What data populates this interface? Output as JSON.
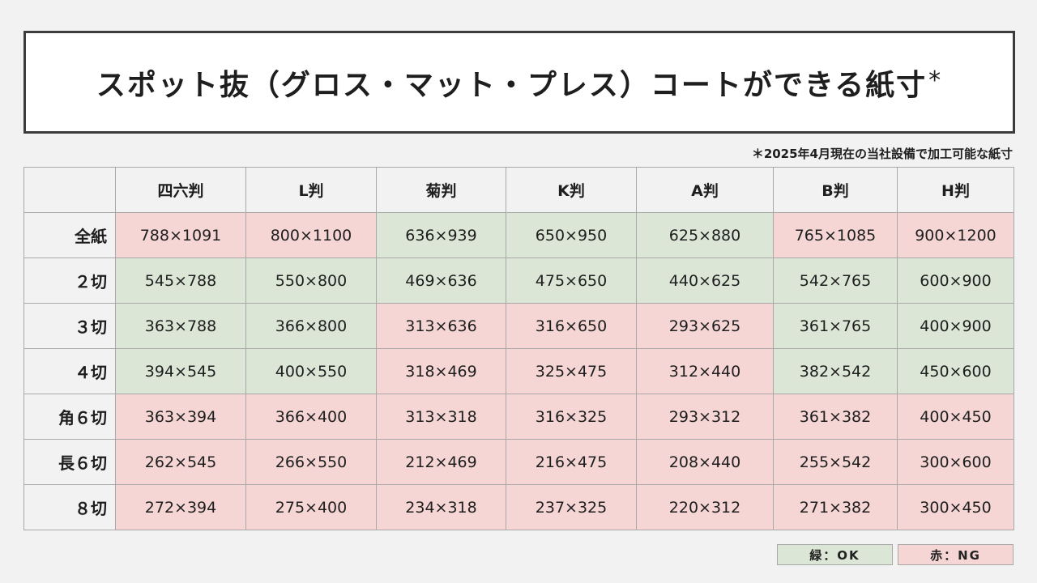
{
  "title": {
    "text": "スポット抜（グロス・マット・プレス）コートができる紙寸",
    "mark": "*"
  },
  "note": "＊2025年4月現在の当社設備で加工可能な紙寸",
  "table": {
    "columns": [
      "四六判",
      "L判",
      "菊判",
      "K判",
      "A判",
      "B判",
      "H判"
    ],
    "rows": [
      {
        "label": "全紙",
        "cells": [
          {
            "value": "788×1091",
            "status": "ng"
          },
          {
            "value": "800×1100",
            "status": "ng"
          },
          {
            "value": "636×939",
            "status": "ok"
          },
          {
            "value": "650×950",
            "status": "ok"
          },
          {
            "value": "625×880",
            "status": "ok"
          },
          {
            "value": "765×1085",
            "status": "ng"
          },
          {
            "value": "900×1200",
            "status": "ng"
          }
        ]
      },
      {
        "label": "２切",
        "cells": [
          {
            "value": "545×788",
            "status": "ok"
          },
          {
            "value": "550×800",
            "status": "ok"
          },
          {
            "value": "469×636",
            "status": "ok"
          },
          {
            "value": "475×650",
            "status": "ok"
          },
          {
            "value": "440×625",
            "status": "ok"
          },
          {
            "value": "542×765",
            "status": "ok"
          },
          {
            "value": "600×900",
            "status": "ok"
          }
        ]
      },
      {
        "label": "３切",
        "cells": [
          {
            "value": "363×788",
            "status": "ok"
          },
          {
            "value": "366×800",
            "status": "ok"
          },
          {
            "value": "313×636",
            "status": "ng"
          },
          {
            "value": "316×650",
            "status": "ng"
          },
          {
            "value": "293×625",
            "status": "ng"
          },
          {
            "value": "361×765",
            "status": "ok"
          },
          {
            "value": "400×900",
            "status": "ok"
          }
        ]
      },
      {
        "label": "４切",
        "cells": [
          {
            "value": "394×545",
            "status": "ok"
          },
          {
            "value": "400×550",
            "status": "ok"
          },
          {
            "value": "318×469",
            "status": "ng"
          },
          {
            "value": "325×475",
            "status": "ng"
          },
          {
            "value": "312×440",
            "status": "ng"
          },
          {
            "value": "382×542",
            "status": "ok"
          },
          {
            "value": "450×600",
            "status": "ok"
          }
        ]
      },
      {
        "label": "角６切",
        "cells": [
          {
            "value": "363×394",
            "status": "ng"
          },
          {
            "value": "366×400",
            "status": "ng"
          },
          {
            "value": "313×318",
            "status": "ng"
          },
          {
            "value": "316×325",
            "status": "ng"
          },
          {
            "value": "293×312",
            "status": "ng"
          },
          {
            "value": "361×382",
            "status": "ng"
          },
          {
            "value": "400×450",
            "status": "ng"
          }
        ]
      },
      {
        "label": "長６切",
        "cells": [
          {
            "value": "262×545",
            "status": "ng"
          },
          {
            "value": "266×550",
            "status": "ng"
          },
          {
            "value": "212×469",
            "status": "ng"
          },
          {
            "value": "216×475",
            "status": "ng"
          },
          {
            "value": "208×440",
            "status": "ng"
          },
          {
            "value": "255×542",
            "status": "ng"
          },
          {
            "value": "300×600",
            "status": "ng"
          }
        ]
      },
      {
        "label": "８切",
        "cells": [
          {
            "value": "272×394",
            "status": "ng"
          },
          {
            "value": "275×400",
            "status": "ng"
          },
          {
            "value": "234×318",
            "status": "ng"
          },
          {
            "value": "237×325",
            "status": "ng"
          },
          {
            "value": "220×312",
            "status": "ng"
          },
          {
            "value": "271×382",
            "status": "ng"
          },
          {
            "value": "300×450",
            "status": "ng"
          }
        ]
      }
    ]
  },
  "legend": {
    "ok_label": "緑：OK",
    "ng_label": "赤：NG"
  },
  "colors": {
    "ok": "#dce6d6",
    "ng": "#f5d6d5"
  }
}
